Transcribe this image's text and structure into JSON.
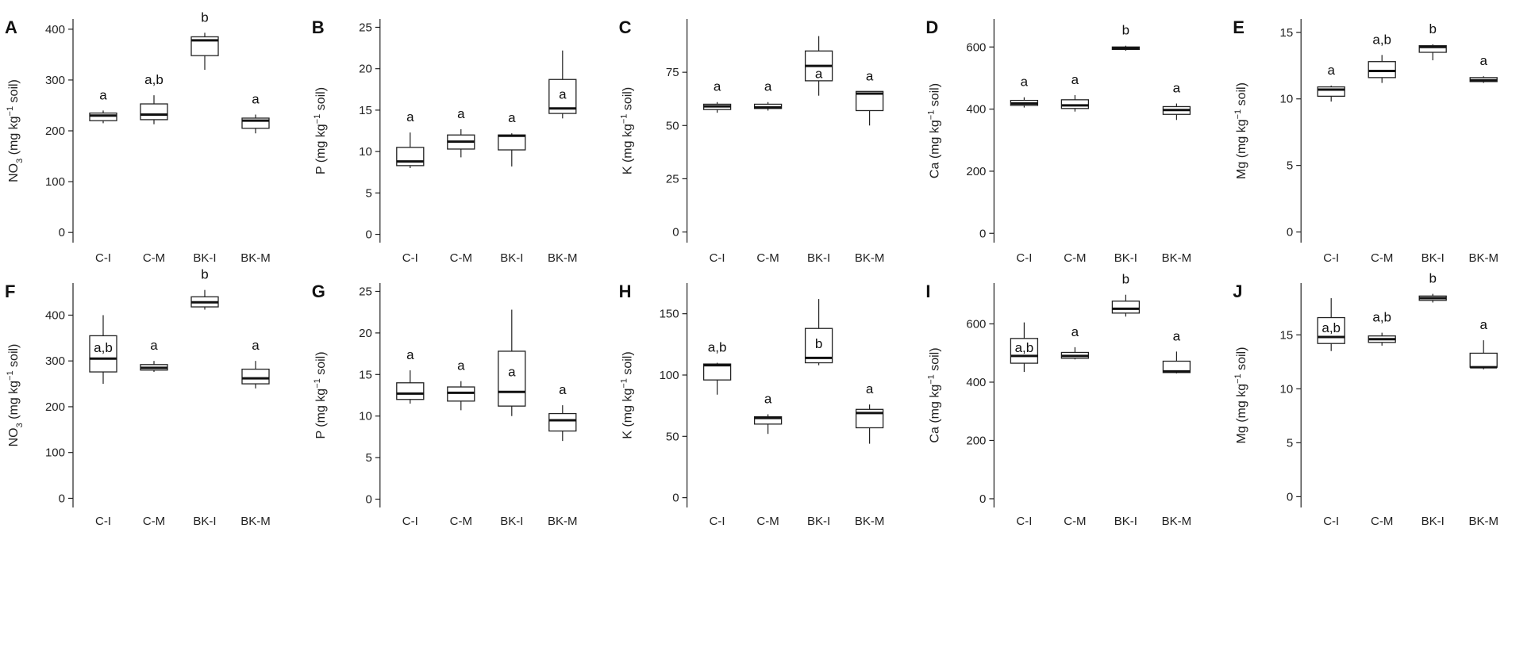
{
  "chart_data": [
    {
      "panel": "A",
      "type": "box",
      "categories": [
        "C-I",
        "C-M",
        "BK-I",
        "BK-M"
      ],
      "ylabel_main": "NO",
      "ylabel_sub": "3",
      "ylabel_unit": " (mg kg",
      "ylabel_sup": "−1",
      "ylabel_tail": " soil)",
      "ylim": [
        -20,
        420
      ],
      "yticks": [
        "0",
        "100",
        "200",
        "300",
        "400"
      ],
      "boxes": [
        {
          "min": 215,
          "q1": 220,
          "median": 230,
          "q3": 235,
          "max": 240,
          "sig": "a"
        },
        {
          "min": 213,
          "q1": 222,
          "median": 232,
          "q3": 253,
          "max": 270,
          "sig": "a,b"
        },
        {
          "min": 320,
          "q1": 348,
          "median": 378,
          "q3": 385,
          "max": 393,
          "sig": "b"
        },
        {
          "min": 195,
          "q1": 205,
          "median": 220,
          "q3": 225,
          "max": 232,
          "sig": "a"
        }
      ]
    },
    {
      "panel": "B",
      "type": "box",
      "categories": [
        "C-I",
        "C-M",
        "BK-I",
        "BK-M"
      ],
      "ylabel_main": "P",
      "ylabel_sub": "",
      "ylabel_unit": " (mg kg",
      "ylabel_sup": "−1",
      "ylabel_tail": " soil)",
      "ylim": [
        -1,
        26
      ],
      "yticks": [
        "0",
        "5",
        "10",
        "15",
        "20",
        "25"
      ],
      "boxes": [
        {
          "min": 8.0,
          "q1": 8.3,
          "median": 8.8,
          "q3": 10.5,
          "max": 12.3,
          "sig": "a"
        },
        {
          "min": 9.3,
          "q1": 10.3,
          "median": 11.2,
          "q3": 12.0,
          "max": 12.7,
          "sig": "a"
        },
        {
          "min": 8.2,
          "q1": 10.2,
          "median": 11.9,
          "q3": 12.0,
          "max": 12.2,
          "sig": "a"
        },
        {
          "min": 14.0,
          "q1": 14.6,
          "median": 15.2,
          "q3": 18.7,
          "max": 22.2,
          "sig": "a"
        }
      ]
    },
    {
      "panel": "C",
      "type": "box",
      "categories": [
        "C-I",
        "C-M",
        "BK-I",
        "BK-M"
      ],
      "ylabel_main": "K",
      "ylabel_sub": "",
      "ylabel_unit": " (mg kg",
      "ylabel_sup": "−1",
      "ylabel_tail": " soil)",
      "ylim": [
        -5,
        100
      ],
      "yticks": [
        "0",
        "25",
        "50",
        "75"
      ],
      "boxes": [
        {
          "min": 56,
          "q1": 57.5,
          "median": 59,
          "q3": 60,
          "max": 61,
          "sig": "a"
        },
        {
          "min": 57,
          "q1": 58,
          "median": 58.5,
          "q3": 60,
          "max": 61,
          "sig": "a"
        },
        {
          "min": 64,
          "q1": 71,
          "median": 78,
          "q3": 85,
          "max": 92,
          "sig": "a"
        },
        {
          "min": 50,
          "q1": 57,
          "median": 65,
          "q3": 66,
          "max": 66,
          "sig": "a"
        }
      ]
    },
    {
      "panel": "D",
      "type": "box",
      "categories": [
        "C-I",
        "C-M",
        "BK-I",
        "BK-M"
      ],
      "ylabel_main": "Ca",
      "ylabel_sub": "",
      "ylabel_unit": " (mg kg",
      "ylabel_sup": "−1",
      "ylabel_tail": " soil)",
      "ylim": [
        -30,
        690
      ],
      "yticks": [
        "0",
        "200",
        "400",
        "600"
      ],
      "boxes": [
        {
          "min": 405,
          "q1": 412,
          "median": 418,
          "q3": 428,
          "max": 438,
          "sig": "a"
        },
        {
          "min": 392,
          "q1": 402,
          "median": 412,
          "q3": 430,
          "max": 445,
          "sig": "a"
        },
        {
          "min": 588,
          "q1": 592,
          "median": 596,
          "q3": 600,
          "max": 604,
          "sig": "b"
        },
        {
          "min": 365,
          "q1": 383,
          "median": 397,
          "q3": 408,
          "max": 418,
          "sig": "a"
        }
      ]
    },
    {
      "panel": "E",
      "type": "box",
      "categories": [
        "C-I",
        "C-M",
        "BK-I",
        "BK-M"
      ],
      "ylabel_main": "Mg",
      "ylabel_sub": "",
      "ylabel_unit": " (mg kg",
      "ylabel_sup": "−1",
      "ylabel_tail": " soil)",
      "ylim": [
        -0.8,
        16
      ],
      "yticks": [
        "0",
        "5",
        "10",
        "15"
      ],
      "boxes": [
        {
          "min": 9.8,
          "q1": 10.2,
          "median": 10.7,
          "q3": 10.9,
          "max": 11.0,
          "sig": "a"
        },
        {
          "min": 11.2,
          "q1": 11.6,
          "median": 12.1,
          "q3": 12.8,
          "max": 13.3,
          "sig": "a,b"
        },
        {
          "min": 12.9,
          "q1": 13.5,
          "median": 13.9,
          "q3": 14.0,
          "max": 14.1,
          "sig": "b"
        },
        {
          "min": 11.2,
          "q1": 11.3,
          "median": 11.4,
          "q3": 11.6,
          "max": 11.7,
          "sig": "a"
        }
      ]
    },
    {
      "panel": "F",
      "type": "box",
      "categories": [
        "C-I",
        "C-M",
        "BK-I",
        "BK-M"
      ],
      "ylabel_main": "NO",
      "ylabel_sub": "3",
      "ylabel_unit": " (mg kg",
      "ylabel_sup": "−1",
      "ylabel_tail": " soil)",
      "ylim": [
        -20,
        470
      ],
      "yticks": [
        "0",
        "100",
        "200",
        "300",
        "400"
      ],
      "boxes": [
        {
          "min": 250,
          "q1": 276,
          "median": 305,
          "q3": 355,
          "max": 400,
          "sig": "a,b"
        },
        {
          "min": 276,
          "q1": 280,
          "median": 285,
          "q3": 292,
          "max": 300,
          "sig": "a"
        },
        {
          "min": 412,
          "q1": 418,
          "median": 428,
          "q3": 440,
          "max": 455,
          "sig": "b"
        },
        {
          "min": 240,
          "q1": 250,
          "median": 262,
          "q3": 282,
          "max": 300,
          "sig": "a"
        }
      ]
    },
    {
      "panel": "G",
      "type": "box",
      "categories": [
        "C-I",
        "C-M",
        "BK-I",
        "BK-M"
      ],
      "ylabel_main": "P",
      "ylabel_sub": "",
      "ylabel_unit": " (mg kg",
      "ylabel_sup": "−1",
      "ylabel_tail": " soil)",
      "ylim": [
        -1,
        26
      ],
      "yticks": [
        "0",
        "5",
        "10",
        "15",
        "20",
        "25"
      ],
      "boxes": [
        {
          "min": 11.5,
          "q1": 12.0,
          "median": 12.7,
          "q3": 14.0,
          "max": 15.5,
          "sig": "a"
        },
        {
          "min": 10.7,
          "q1": 11.8,
          "median": 12.8,
          "q3": 13.5,
          "max": 14.2,
          "sig": "a"
        },
        {
          "min": 10.0,
          "q1": 11.2,
          "median": 12.9,
          "q3": 17.8,
          "max": 22.8,
          "sig": "a"
        },
        {
          "min": 7.0,
          "q1": 8.2,
          "median": 9.5,
          "q3": 10.3,
          "max": 11.3,
          "sig": "a"
        }
      ]
    },
    {
      "panel": "H",
      "type": "box",
      "categories": [
        "C-I",
        "C-M",
        "BK-I",
        "BK-M"
      ],
      "ylabel_main": "K",
      "ylabel_sub": "",
      "ylabel_unit": " (mg kg",
      "ylabel_sup": "−1",
      "ylabel_tail": " soil)",
      "ylim": [
        -8,
        175
      ],
      "yticks": [
        "0",
        "50",
        "100",
        "150"
      ],
      "boxes": [
        {
          "min": 84,
          "q1": 96,
          "median": 108,
          "q3": 109,
          "max": 110,
          "sig": "a,b"
        },
        {
          "min": 52,
          "q1": 60,
          "median": 65,
          "q3": 66,
          "max": 68,
          "sig": "a"
        },
        {
          "min": 108,
          "q1": 110,
          "median": 114,
          "q3": 138,
          "max": 162,
          "sig": "b"
        },
        {
          "min": 44,
          "q1": 57,
          "median": 69,
          "q3": 72,
          "max": 76,
          "sig": "a"
        }
      ]
    },
    {
      "panel": "I",
      "type": "box",
      "categories": [
        "C-I",
        "C-M",
        "BK-I",
        "BK-M"
      ],
      "ylabel_main": "Ca",
      "ylabel_sub": "",
      "ylabel_unit": " (mg kg",
      "ylabel_sup": "−1",
      "ylabel_tail": " soil)",
      "ylim": [
        -30,
        740
      ],
      "yticks": [
        "0",
        "200",
        "400",
        "600"
      ],
      "boxes": [
        {
          "min": 435,
          "q1": 465,
          "median": 490,
          "q3": 550,
          "max": 605,
          "sig": "a,b"
        },
        {
          "min": 478,
          "q1": 482,
          "median": 490,
          "q3": 502,
          "max": 520,
          "sig": "a"
        },
        {
          "min": 625,
          "q1": 637,
          "median": 652,
          "q3": 678,
          "max": 700,
          "sig": "b"
        },
        {
          "min": 430,
          "q1": 433,
          "median": 437,
          "q3": 472,
          "max": 505,
          "sig": "a"
        }
      ]
    },
    {
      "panel": "J",
      "type": "box",
      "categories": [
        "C-I",
        "C-M",
        "BK-I",
        "BK-M"
      ],
      "ylabel_main": "Mg",
      "ylabel_sub": "",
      "ylabel_unit": " (mg kg",
      "ylabel_sup": "−1",
      "ylabel_tail": " soil)",
      "ylim": [
        -1,
        19.8
      ],
      "yticks": [
        "0",
        "5",
        "10",
        "15"
      ],
      "boxes": [
        {
          "min": 13.5,
          "q1": 14.2,
          "median": 14.8,
          "q3": 16.6,
          "max": 18.4,
          "sig": "a,b"
        },
        {
          "min": 14.0,
          "q1": 14.3,
          "median": 14.6,
          "q3": 14.9,
          "max": 15.2,
          "sig": "a,b"
        },
        {
          "min": 18.0,
          "q1": 18.2,
          "median": 18.4,
          "q3": 18.6,
          "max": 18.8,
          "sig": "b"
        },
        {
          "min": 11.8,
          "q1": 12.0,
          "median": 12.0,
          "q3": 13.3,
          "max": 14.5,
          "sig": "a"
        }
      ]
    }
  ]
}
